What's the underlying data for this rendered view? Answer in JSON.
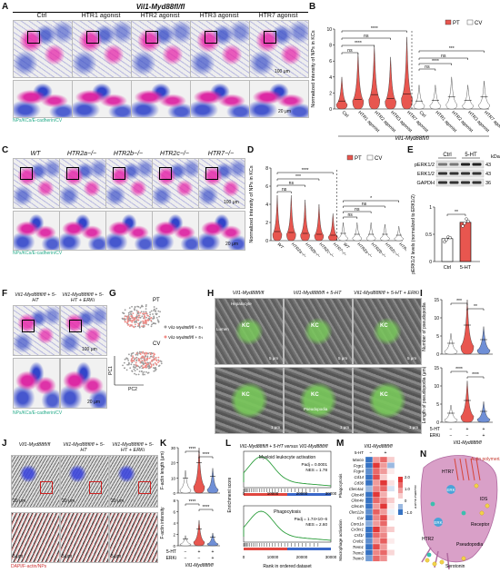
{
  "panels": {
    "A": {
      "label": "A",
      "genotype": "Vil1-Myd88fl/fl",
      "columns": [
        "Ctrl",
        "HTR1 agonist",
        "HTR2 agonist",
        "HTR3 agonist",
        "HTR7 agonist"
      ],
      "scale_top": "100 μm",
      "scale_bottom": "20 μm",
      "legend": "NPs/KCs/E-cadherin/CV"
    },
    "B": {
      "label": "B",
      "ylabel": "Normalized intensity of NPs in KCs",
      "legend_pt": "PT",
      "legend_cv": "CV",
      "xgroup": "Vil1-Myd88fl/fl",
      "sig": [
        "****",
        "ns",
        "ns",
        "****",
        "ns",
        "***",
        "****",
        "ns",
        "ns"
      ]
    },
    "C": {
      "label": "C",
      "columns": [
        "WT",
        "HTR2a−/−",
        "HTR2b−/−",
        "HTR2c−/−",
        "HTR7−/−"
      ],
      "scale_top": "100 μm",
      "scale_bottom": "20 μm",
      "legend": "NPs/KCs/E-cadherin/CV"
    },
    "D": {
      "label": "D",
      "ylabel": "Normalized intensity of NPs in KCs",
      "legend_pt": "PT",
      "legend_cv": "CV",
      "sig": [
        "****",
        "***",
        "ns",
        "ns",
        "ns",
        "ns",
        "*",
        "ns"
      ]
    },
    "E": {
      "label": "E",
      "col_ctrl": "Ctrl",
      "col_5ht": "5-HT",
      "unit": "kDa",
      "bands": [
        "pERK1/2",
        "ERK1/2",
        "GAPDH"
      ],
      "kda": [
        "43",
        "43",
        "36"
      ],
      "ylabel": "pERK1/2 levels (normalized to ERK1/2)",
      "sig": "**",
      "xticks": [
        "Ctrl",
        "5-HT"
      ]
    },
    "F": {
      "label": "F",
      "col1": "Vil1-Myd88fl/fl + 5-HT",
      "col2": "Vil1-Myd88fl/fl + 5-HT + ERKi",
      "scale_top": "100 μm",
      "scale_bottom": "20 μm",
      "legend": "NPs/KCs/E-cadherin/CV"
    },
    "G": {
      "label": "G",
      "pt": "PT",
      "cv": "CV",
      "leg1": "Vil1-Myd88fl/fl + 5-HT",
      "leg2": "Vil1-Myd88fl/fl + 5-HT + ERKi",
      "pc1": "PC1",
      "pc2": "PC2"
    },
    "H": {
      "label": "H",
      "cols": [
        "Vil1-Myd88fl/fl",
        "Vil1-Myd88fl/fl + 5-HT",
        "Vil1-Myd88fl/fl + 5-HT + ERKi"
      ],
      "kc": "KC",
      "hepatocyte": "Hepatocyte",
      "lumen": "Lumen",
      "pseudopodia": "Pseudopodia",
      "scale": "5 μm",
      "scale_b": "1 μm"
    },
    "I": {
      "label": "I",
      "ylabel_top": "Number of pseudopodia",
      "ylabel_bottom": "Length of pseudopodia (μm)",
      "row1": "5-HT",
      "row2": "ERKi",
      "row1_vals": [
        "−",
        "+",
        "+"
      ],
      "row2_vals": [
        "−",
        "−",
        "+"
      ],
      "group": "Vil1-Myd88fl/fl",
      "sig_top": [
        "***",
        "**"
      ],
      "sig_bottom": [
        "****",
        "****"
      ]
    },
    "J": {
      "label": "J",
      "cols": [
        "Vil1-Myd88fl/fl",
        "Vil1-Myd88fl/fl + 5-HT",
        "Vil1-Myd88fl/fl + 5-HT + ERKi"
      ],
      "scale_top": "20 μm",
      "scale_bottom": "5 μm",
      "legend": "DAPI/F-actin/NPs"
    },
    "K": {
      "label": "K",
      "ylabel_top": "F-actin length (μm)",
      "ylabel_bottom": "F-actin intensity",
      "row1": "5-HT",
      "row2": "ERKi",
      "row1_vals": [
        "−",
        "+",
        "+"
      ],
      "row2_vals": [
        "−",
        "−",
        "+"
      ],
      "group": "Vil1-Myd88fl/fl",
      "sig_top": [
        "****",
        "****"
      ],
      "sig_bottom": [
        "****",
        "****"
      ]
    },
    "L": {
      "label": "L",
      "title": "Vil1-Myd88fl/fl + 5-HT versus Vil1-Myd88fl/fl",
      "set1": "Myeloid leukocyte activation",
      "padj1": "Padj = 0.0001",
      "nes1": "NES = 1.78",
      "set2": "Phagocytosis",
      "padj2": "Padj = 1.74×10−6",
      "nes2": "NES = 2.60",
      "ylabel": "Enrichment score",
      "xlabel": "Rank in ordered dataset",
      "xticks": [
        "0",
        "10000",
        "20000",
        "30000"
      ]
    },
    "M": {
      "label": "M",
      "title": "Vil1-Myd88fl/fl",
      "cols": [
        "5-HT",
        "−",
        "+"
      ],
      "genes": [
        "Marco",
        "Fcgr1",
        "Fcgr4",
        "Cd14",
        "Cd36",
        "Clec4a1",
        "Clec4d",
        "Clec4e",
        "Clec4n",
        "Clec12a",
        "Car",
        "Coro1a",
        "Cx3cr1",
        "Csf1r",
        "Creb1",
        "Trem1",
        "Trem2",
        "Trem3"
      ],
      "group1": "Phagocytosis",
      "group2": "Macrophage activation",
      "scale_label": "Scaled score",
      "scale_ticks": [
        "2.0",
        "1.0",
        "0",
        "−1.0"
      ]
    },
    "N": {
      "label": "N",
      "htr7": "HTR7",
      "htr2": "HTR2",
      "erk1": "ERK",
      "erk2": "ERK",
      "actin": "Actin polymerization",
      "ids": "IDS",
      "receptor": "Receptor",
      "pseudopodia": "Pseudopodia",
      "serotonin": "Serotonin"
    }
  },
  "chart_data": [
    {
      "panel": "B",
      "type": "violin",
      "title": "",
      "ylabel": "Normalized intensity of NPs in KCs",
      "ylim": [
        0,
        10
      ],
      "yticks": [
        0,
        2,
        4,
        6,
        8,
        10
      ],
      "categories": [
        "Ctrl",
        "HTR1 agonist",
        "HTR2 agonist",
        "HTR3 agonist",
        "HTR7 agonist"
      ],
      "series": [
        {
          "name": "PT",
          "medians": [
            1.0,
            1.2,
            1.8,
            1.3,
            1.9
          ],
          "max": [
            4,
            7,
            8,
            6.5,
            9
          ]
        },
        {
          "name": "CV",
          "medians": [
            1.0,
            1.1,
            1.5,
            1.1,
            1.5
          ],
          "max": [
            3,
            3,
            4,
            3,
            3.5
          ]
        }
      ]
    },
    {
      "panel": "D",
      "type": "violin",
      "title": "",
      "ylabel": "Normalized intensity of NPs in KCs",
      "ylim": [
        0,
        8
      ],
      "yticks": [
        0,
        2,
        4,
        6,
        8
      ],
      "categories": [
        "WT",
        "HTR2a−/−",
        "HTR2b−/−",
        "HTR2c−/−",
        "HTR7−/−"
      ],
      "series": [
        {
          "name": "PT",
          "medians": [
            1.0,
            0.9,
            0.8,
            0.7,
            0.6
          ],
          "max": [
            5,
            5,
            4.5,
            4,
            3
          ]
        },
        {
          "name": "CV",
          "medians": [
            0.8,
            0.7,
            0.7,
            0.7,
            0.6
          ],
          "max": [
            2,
            2,
            2,
            1.8,
            1.6
          ]
        }
      ]
    },
    {
      "panel": "E",
      "type": "bar",
      "title": "",
      "ylabel": "pERK1/2 levels (normalized to ERK1/2)",
      "ylim": [
        0,
        1.0
      ],
      "yticks": [
        0,
        0.5,
        1.0
      ],
      "categories": [
        "Ctrl",
        "5-HT"
      ],
      "values": [
        0.42,
        0.72
      ],
      "points": [
        [
          0.36,
          0.4,
          0.45,
          0.44
        ],
        [
          0.65,
          0.7,
          0.78,
          0.74
        ]
      ]
    },
    {
      "panel": "I-top",
      "type": "violin",
      "ylabel": "Number of pseudopodia",
      "ylim": [
        0,
        15
      ],
      "yticks": [
        0,
        5,
        10,
        15
      ],
      "medians": [
        3,
        8,
        4
      ]
    },
    {
      "panel": "I-bottom",
      "type": "violin",
      "ylabel": "Length of pseudopodia (μm)",
      "ylim": [
        0,
        15
      ],
      "yticks": [
        0,
        5,
        10,
        15
      ],
      "medians": [
        2.5,
        6,
        3
      ]
    },
    {
      "panel": "K-top",
      "type": "violin",
      "ylabel": "F-actin length (μm)",
      "ylim": [
        0,
        30
      ],
      "yticks": [
        0,
        10,
        20,
        30
      ],
      "medians": [
        10,
        20,
        11
      ]
    },
    {
      "panel": "K-bottom",
      "type": "violin",
      "ylabel": "F-actin intensity",
      "ylim": [
        0,
        8
      ],
      "yticks": [
        0,
        2,
        4,
        6,
        8
      ],
      "medians": [
        1.2,
        3,
        1.5
      ]
    },
    {
      "panel": "M",
      "type": "heatmap",
      "rows": [
        "Marco",
        "Fcgr1",
        "Fcgr4",
        "Cd14",
        "Cd36",
        "Clec4a1",
        "Clec4d",
        "Clec4e",
        "Clec4n",
        "Clec12a",
        "Car",
        "Coro1a",
        "Cx3cr1",
        "Csf1r",
        "Creb1",
        "Trem1",
        "Trem2",
        "Trem3"
      ],
      "cols": [
        "−",
        "+",
        "+",
        "+"
      ],
      "values": [
        [
          -1,
          1,
          1.5,
          0.5
        ],
        [
          -1,
          2,
          1,
          -0.5
        ],
        [
          -0.8,
          1.5,
          1,
          0.2
        ],
        [
          -1,
          1.8,
          0.5,
          0
        ],
        [
          -1,
          1,
          2,
          0.3
        ],
        [
          -0.5,
          1.2,
          1.5,
          -0.2
        ],
        [
          -1,
          2,
          0.8,
          0
        ],
        [
          -1,
          1.5,
          1.2,
          0.5
        ],
        [
          -1,
          1,
          2,
          0.2
        ],
        [
          -0.8,
          1.6,
          1,
          -0.1
        ],
        [
          -1,
          1.2,
          1.8,
          0.3
        ],
        [
          -0.6,
          1,
          1.5,
          0
        ],
        [
          -1,
          2,
          1,
          0.5
        ],
        [
          -1,
          1.5,
          1.2,
          0
        ],
        [
          -0.8,
          1,
          1.6,
          0.2
        ],
        [
          -1,
          1.8,
          1,
          0
        ],
        [
          -1,
          1.2,
          1.5,
          0.4
        ],
        [
          -0.7,
          1.5,
          1.1,
          0
        ]
      ]
    }
  ]
}
